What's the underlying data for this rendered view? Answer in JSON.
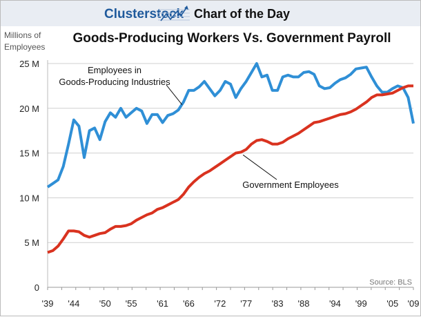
{
  "header": {
    "brand": "Clusterstock",
    "section": "Chart of the Day",
    "logo_icon": "rising-chart-icon",
    "brand_color": "#1f5a9c"
  },
  "chart_data": {
    "type": "line",
    "title": "Goods-Producing Workers Vs. Government Payroll",
    "ylabel": "Millions of Employees",
    "source": "Source: BLS",
    "xlim": [
      1939,
      2009
    ],
    "ylim": [
      0,
      25
    ],
    "y_ticks": [
      {
        "v": 0,
        "label": "0"
      },
      {
        "v": 5,
        "label": "5 M"
      },
      {
        "v": 10,
        "label": "10 M"
      },
      {
        "v": 15,
        "label": "15 M"
      },
      {
        "v": 20,
        "label": "20 M"
      },
      {
        "v": 25,
        "label": "25 M"
      }
    ],
    "x_ticks": [
      {
        "v": 1939,
        "label": "'39"
      },
      {
        "v": 1944,
        "label": "'44"
      },
      {
        "v": 1950,
        "label": "'50"
      },
      {
        "v": 1955,
        "label": "'55"
      },
      {
        "v": 1961,
        "label": "'61"
      },
      {
        "v": 1966,
        "label": "'66"
      },
      {
        "v": 1972,
        "label": "'72"
      },
      {
        "v": 1977,
        "label": "'77"
      },
      {
        "v": 1983,
        "label": "'83"
      },
      {
        "v": 1988,
        "label": "'88"
      },
      {
        "v": 1994,
        "label": "'94"
      },
      {
        "v": 1999,
        "label": "'99"
      },
      {
        "v": 2005,
        "label": "'05"
      },
      {
        "v": 2009,
        "label": "'09"
      }
    ],
    "grid": "horizontal",
    "x": [
      1939,
      1940,
      1941,
      1942,
      1943,
      1944,
      1945,
      1946,
      1947,
      1948,
      1949,
      1950,
      1951,
      1952,
      1953,
      1954,
      1955,
      1956,
      1957,
      1958,
      1959,
      1960,
      1961,
      1962,
      1963,
      1964,
      1965,
      1966,
      1967,
      1968,
      1969,
      1970,
      1971,
      1972,
      1973,
      1974,
      1975,
      1976,
      1977,
      1978,
      1979,
      1980,
      1981,
      1982,
      1983,
      1984,
      1985,
      1986,
      1987,
      1988,
      1989,
      1990,
      1991,
      1992,
      1993,
      1994,
      1995,
      1996,
      1997,
      1998,
      1999,
      2000,
      2001,
      2002,
      2003,
      2004,
      2005,
      2006,
      2007,
      2008,
      2009
    ],
    "series": [
      {
        "name": "Employees in Goods-Producing Industries",
        "color": "#2f8fd6",
        "values": [
          11.2,
          11.6,
          12.0,
          13.5,
          16.0,
          18.7,
          18.0,
          14.5,
          17.5,
          17.8,
          16.5,
          18.5,
          19.5,
          19.0,
          20.0,
          19.0,
          19.5,
          20.0,
          19.7,
          18.3,
          19.3,
          19.3,
          18.4,
          19.2,
          19.4,
          19.8,
          20.7,
          22.0,
          22.0,
          22.4,
          23.0,
          22.2,
          21.4,
          22.0,
          23.0,
          22.7,
          21.2,
          22.2,
          23.0,
          24.0,
          25.0,
          23.5,
          23.7,
          22.0,
          22.0,
          23.5,
          23.7,
          23.5,
          23.5,
          24.0,
          24.1,
          23.8,
          22.5,
          22.2,
          22.3,
          22.8,
          23.2,
          23.4,
          23.8,
          24.4,
          24.5,
          24.6,
          23.5,
          22.5,
          21.8,
          21.8,
          22.2,
          22.5,
          22.3,
          21.2,
          18.3
        ]
      },
      {
        "name": "Government Employees",
        "color": "#d9321f",
        "values": [
          3.9,
          4.1,
          4.6,
          5.4,
          6.3,
          6.3,
          6.2,
          5.8,
          5.6,
          5.8,
          6.0,
          6.1,
          6.5,
          6.8,
          6.8,
          6.9,
          7.1,
          7.5,
          7.8,
          8.1,
          8.3,
          8.7,
          8.9,
          9.2,
          9.5,
          9.8,
          10.4,
          11.2,
          11.8,
          12.3,
          12.7,
          13.0,
          13.4,
          13.8,
          14.2,
          14.6,
          15.0,
          15.1,
          15.4,
          16.0,
          16.4,
          16.5,
          16.3,
          16.0,
          16.0,
          16.2,
          16.6,
          16.9,
          17.2,
          17.6,
          18.0,
          18.4,
          18.5,
          18.7,
          18.9,
          19.1,
          19.3,
          19.4,
          19.6,
          19.9,
          20.3,
          20.7,
          21.2,
          21.5,
          21.5,
          21.6,
          21.7,
          22.0,
          22.3,
          22.5,
          22.5
        ]
      }
    ],
    "annotations": [
      {
        "text_lines": [
          "Employees in",
          "Goods-Producing Industries"
        ],
        "series": 0,
        "year": 1965
      },
      {
        "text_lines": [
          "Government Employees"
        ],
        "series": 1,
        "year": 1976
      }
    ]
  }
}
